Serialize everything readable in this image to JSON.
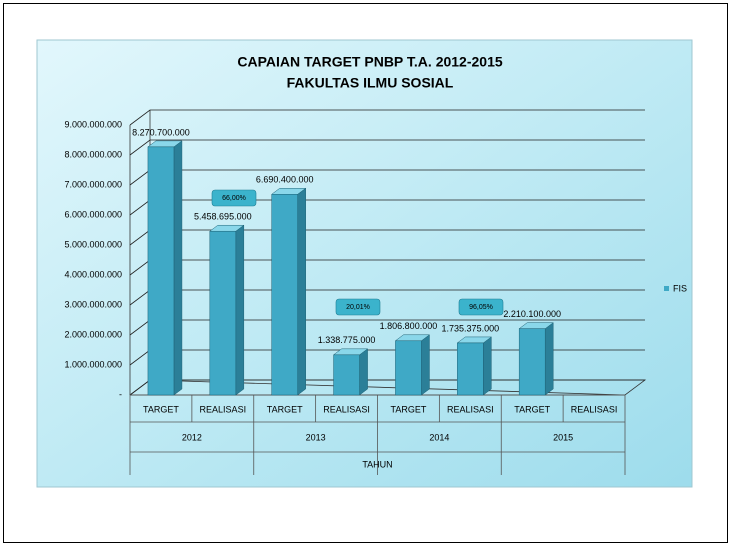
{
  "chart_data": {
    "type": "bar3d",
    "title": "CAPAIAN TARGET PNBP T.A. 2012-2015",
    "subtitle": "FAKULTAS ILMU SOSIAL",
    "categories": [
      "TARGET",
      "REALISASI",
      "TARGET",
      "REALISASI",
      "TARGET",
      "REALISASI",
      "TARGET",
      "REALISASI"
    ],
    "groups": [
      "2012",
      "2013",
      "2014",
      "2015"
    ],
    "xlabel": "TAHUN",
    "series": [
      {
        "name": "FIS",
        "color": "#3fa9c6",
        "values": [
          8270700000,
          5458695000,
          6690400000,
          1338775000,
          1806800000,
          1735375000,
          2210100000,
          null
        ],
        "value_labels": [
          "8.270.700.000",
          "5.458.695.000",
          "6.690.400.000",
          "1.338.775.000",
          "1.806.800.000",
          "1.735.375.000",
          "2.210.100.000",
          null
        ]
      }
    ],
    "annotations": [
      "66,00%",
      "20,01%",
      "96,05%"
    ],
    "ylim": [
      0,
      9000000000
    ],
    "yticks": [
      {
        "value": 0,
        "label": "-"
      },
      {
        "value": 1000000000,
        "label": "1.000.000.000"
      },
      {
        "value": 2000000000,
        "label": "2.000.000.000"
      },
      {
        "value": 3000000000,
        "label": "3.000.000.000"
      },
      {
        "value": 4000000000,
        "label": "4.000.000.000"
      },
      {
        "value": 5000000000,
        "label": "5.000.000.000"
      },
      {
        "value": 6000000000,
        "label": "6.000.000.000"
      },
      {
        "value": 7000000000,
        "label": "7.000.000.000"
      },
      {
        "value": 8000000000,
        "label": "8.000.000.000"
      },
      {
        "value": 9000000000,
        "label": "9.000.000.000"
      }
    ],
    "grid": true,
    "legend": "right"
  }
}
